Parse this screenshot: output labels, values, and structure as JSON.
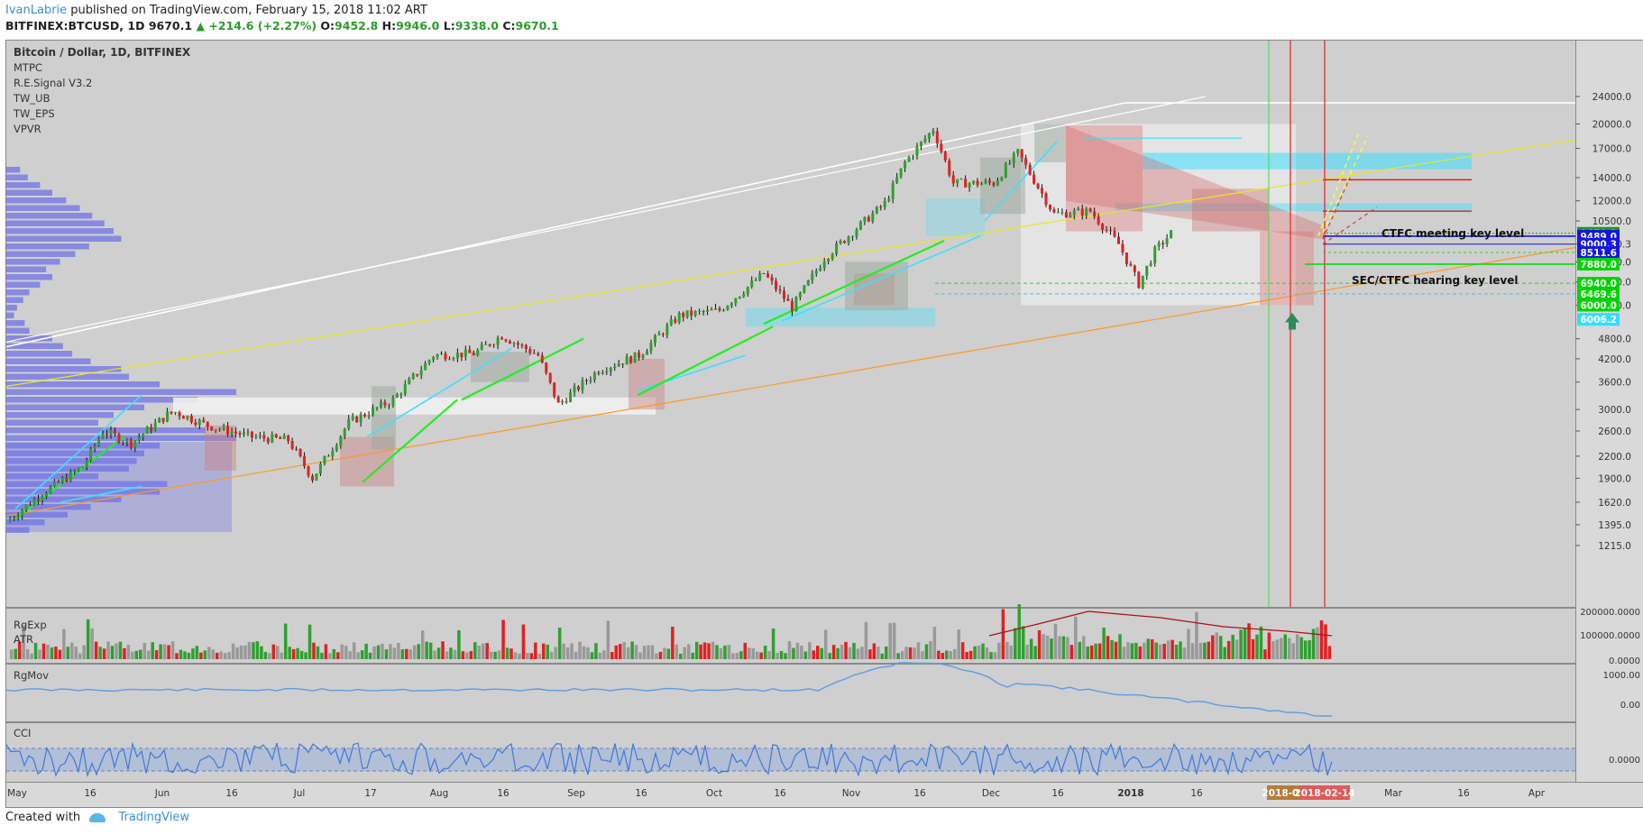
{
  "header": {
    "author": "IvanLabrie",
    "published": " published on TradingView.com, February 15, 2018 11:02 ART",
    "symbol": "BITFINEX:BTCUSD, 1D",
    "last": "9670.1",
    "change": "+214.6 (+2.27%)",
    "o_label": "O:",
    "o": "9452.8",
    "h_label": "H:",
    "h": "9946.0",
    "l_label": "L:",
    "l": "9338.0",
    "c_label": "C:",
    "c": "9670.1"
  },
  "legend": {
    "title": "Bitcoin / Dollar, 1D, BITFINEX",
    "indicators": [
      "MTPC",
      "R.E.Signal V3.2",
      "TW_UB",
      "TW_EPS",
      "VPVR"
    ]
  },
  "colors": {
    "up": "#2ea02e",
    "down": "#e02020",
    "cyan": "#3de0ff",
    "yellow": "#ffff33",
    "orange": "#ff9922",
    "volprofile": "#6f73e6",
    "panel_bg": "#cfcfcf",
    "label_blue": "#1515e0",
    "label_green": "#00e000",
    "label_cyan": "#33ddff"
  },
  "annotations": {
    "ctfc": "CTFC meeting key level",
    "sec": "SEC/CTFC hearing key level"
  },
  "footer": {
    "created": "Created with",
    "brand": "TradingView"
  },
  "panels": {
    "rgexp": "RgExp",
    "atr": "ATR",
    "rgmov": "RgMov",
    "cci": "CCI"
  },
  "chart_data": {
    "type": "candlestick",
    "title": "Bitcoin / Dollar, 1D, BITFINEX",
    "y_scale": "log",
    "ylim": [
      1215,
      24000
    ],
    "y_ticks": [
      "24000.0",
      "20000.0",
      "17000.0",
      "14000.0",
      "12000.0",
      "10500.0",
      "9000.3",
      "8000.0",
      "7000.0",
      "6000.0",
      "4800.0",
      "4200.0",
      "3600.0",
      "3000.0",
      "2600.0",
      "2200.0",
      "1900.0",
      "1620.0",
      "1395.0",
      "1215.0"
    ],
    "x_ticks": [
      "May",
      "16",
      "Jun",
      "16",
      "Jul",
      "17",
      "Aug",
      "16",
      "Sep",
      "16",
      "Oct",
      "16",
      "Nov",
      "16",
      "Dec",
      "16",
      "2018",
      "16",
      "2018-02-06",
      "2018-02-14",
      "Mar",
      "16",
      "Apr"
    ],
    "price_labels": [
      {
        "text": "9670.1",
        "value": 9670.1,
        "color": "#1a9a1a"
      },
      {
        "text": "9489.0",
        "value": 9489.0,
        "color": "#1515e0"
      },
      {
        "text": "9000.3",
        "value": 9000.3,
        "color": "#1515e0"
      },
      {
        "text": "8511.6",
        "value": 8511.6,
        "color": "#1515e0"
      },
      {
        "text": "7880.0",
        "value": 7880.0,
        "color": "#00d400"
      },
      {
        "text": "6940.0",
        "value": 6940.0,
        "color": "#00d400"
      },
      {
        "text": "6469.6",
        "value": 6469.6,
        "color": "#00d400"
      },
      {
        "text": "6000.0",
        "value": 6000.0,
        "color": "#00d400"
      },
      {
        "text": "6006.2",
        "value": 6006.2,
        "color": "#33ddff"
      }
    ],
    "key_levels": [
      {
        "name": "CTFC meeting key level",
        "value": 9000.3
      },
      {
        "name": "SEC/CTFC hearing key level",
        "value": 7880.0
      }
    ],
    "close_series": [
      [
        "2017-05-01",
        1420
      ],
      [
        "2017-05-10",
        1720
      ],
      [
        "2017-05-20",
        2050
      ],
      [
        "2017-05-25",
        2600
      ],
      [
        "2017-06-01",
        2400
      ],
      [
        "2017-06-10",
        2900
      ],
      [
        "2017-06-12",
        2950
      ],
      [
        "2017-06-20",
        2700
      ],
      [
        "2017-07-01",
        2500
      ],
      [
        "2017-07-10",
        2450
      ],
      [
        "2017-07-16",
        1900
      ],
      [
        "2017-07-25",
        2750
      ],
      [
        "2017-08-05",
        3200
      ],
      [
        "2017-08-15",
        4300
      ],
      [
        "2017-08-25",
        4350
      ],
      [
        "2017-09-01",
        4900
      ],
      [
        "2017-09-10",
        4300
      ],
      [
        "2017-09-15",
        3100
      ],
      [
        "2017-09-25",
        3900
      ],
      [
        "2017-10-05",
        4300
      ],
      [
        "2017-10-15",
        5600
      ],
      [
        "2017-10-25",
        5800
      ],
      [
        "2017-11-05",
        7400
      ],
      [
        "2017-11-12",
        5900
      ],
      [
        "2017-11-20",
        8200
      ],
      [
        "2017-11-28",
        10000
      ],
      [
        "2017-12-05",
        11800
      ],
      [
        "2017-12-10",
        15500
      ],
      [
        "2017-12-17",
        19300
      ],
      [
        "2017-12-22",
        13500
      ],
      [
        "2018-01-01",
        13500
      ],
      [
        "2018-01-07",
        16500
      ],
      [
        "2018-01-16",
        11000
      ],
      [
        "2018-01-25",
        11200
      ],
      [
        "2018-02-01",
        9000
      ],
      [
        "2018-02-06",
        6900
      ],
      [
        "2018-02-10",
        8600
      ],
      [
        "2018-02-14",
        9670.1
      ]
    ]
  }
}
